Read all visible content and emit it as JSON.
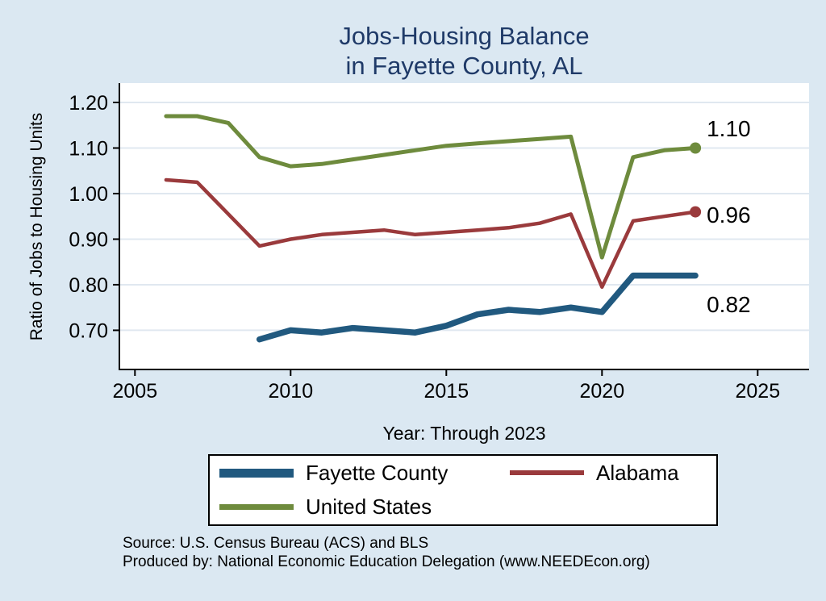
{
  "title": {
    "line1": "Jobs-Housing Balance",
    "line2": "in Fayette County, AL"
  },
  "source": {
    "line1": "Source: U.S. Census Bureau (ACS) and BLS",
    "line2": "Produced by: National Economic Education Delegation (www.NEEDEcon.org)"
  },
  "colors": {
    "page_background": "#dbe8f2",
    "plot_background": "#ffffff",
    "grid": "#e0e8f0",
    "axis": "#000000",
    "title_text": "#1f3a68",
    "fayette_county": "#21597f",
    "alabama": "#9a3a3c",
    "united_states": "#6e8b3d"
  },
  "chart_data": {
    "type": "line",
    "title": "Jobs-Housing Balance in Fayette County, AL",
    "xlabel": "Year: Through 2023",
    "ylabel": "Ratio of Jobs to Housing Units",
    "xlim": [
      2004.5,
      2026.65
    ],
    "ylim": [
      0.614,
      1.2425
    ],
    "x_ticks": [
      2005,
      2010,
      2015,
      2020,
      2025
    ],
    "y_ticks": [
      0.7,
      0.8,
      0.9,
      1.0,
      1.1,
      1.2
    ],
    "grid": "horizontal",
    "legend_position": "bottom",
    "series": [
      {
        "name": "Fayette County",
        "color": "#21597f",
        "width": 7.5,
        "end_label": "0.82",
        "end_marker": false,
        "x": [
          2009,
          2010,
          2011,
          2012,
          2013,
          2014,
          2015,
          2016,
          2017,
          2018,
          2019,
          2020,
          2021,
          2022,
          2023
        ],
        "y": [
          0.68,
          0.7,
          0.695,
          0.705,
          0.7,
          0.695,
          0.71,
          0.735,
          0.745,
          0.74,
          0.75,
          0.74,
          0.82,
          0.82,
          0.82
        ]
      },
      {
        "name": "Alabama",
        "color": "#9a3a3c",
        "width": 4.5,
        "end_label": "0.96",
        "end_marker": true,
        "x": [
          2006,
          2007,
          2008,
          2009,
          2010,
          2011,
          2012,
          2013,
          2014,
          2015,
          2016,
          2017,
          2018,
          2019,
          2020,
          2021,
          2022,
          2023
        ],
        "y": [
          1.03,
          1.025,
          0.955,
          0.885,
          0.9,
          0.91,
          0.915,
          0.92,
          0.91,
          0.915,
          0.92,
          0.925,
          0.935,
          0.955,
          0.795,
          0.94,
          0.95,
          0.96
        ]
      },
      {
        "name": "United States",
        "color": "#6e8b3d",
        "width": 5,
        "end_label": "1.10",
        "end_marker": true,
        "x": [
          2006,
          2007,
          2008,
          2009,
          2010,
          2011,
          2012,
          2013,
          2014,
          2015,
          2016,
          2017,
          2018,
          2019,
          2020,
          2021,
          2022,
          2023
        ],
        "y": [
          1.17,
          1.17,
          1.155,
          1.08,
          1.06,
          1.065,
          1.075,
          1.085,
          1.095,
          1.105,
          1.11,
          1.115,
          1.12,
          1.125,
          0.86,
          1.08,
          1.095,
          1.1
        ]
      }
    ]
  }
}
